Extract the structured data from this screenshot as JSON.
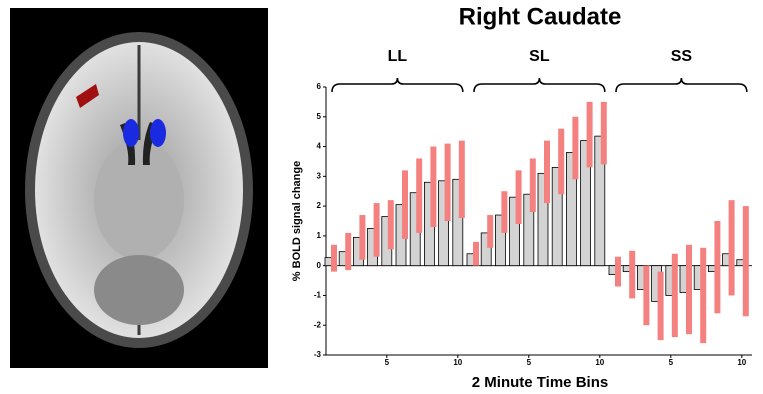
{
  "chart_data": {
    "type": "bar",
    "title": "Right Caudate",
    "xlabel": "2 Minute Time Bins",
    "ylabel": "% BOLD signal change",
    "ylim": [
      -3,
      6
    ],
    "yticks": [
      -3,
      -2,
      -1,
      0,
      1,
      2,
      3,
      4,
      5,
      6
    ],
    "bar_color": "#d3d3d3",
    "error_color": "#f48080",
    "groups": [
      {
        "name": "LL",
        "xticks": [
          5,
          10
        ],
        "values": [
          0.27,
          0.47,
          0.95,
          1.25,
          1.65,
          2.05,
          2.45,
          2.8,
          2.85,
          2.9
        ],
        "low": [
          -0.2,
          -0.15,
          0.2,
          0.3,
          0.55,
          0.9,
          1.1,
          1.3,
          1.5,
          1.6
        ],
        "high": [
          0.7,
          1.1,
          1.7,
          2.1,
          2.2,
          3.2,
          3.6,
          4.0,
          4.1,
          4.2
        ]
      },
      {
        "name": "SL",
        "xticks": [
          5,
          10
        ],
        "values": [
          0.4,
          1.1,
          1.7,
          2.3,
          2.4,
          3.1,
          3.3,
          3.8,
          4.2,
          4.35
        ],
        "low": [
          0.0,
          0.6,
          1.1,
          1.4,
          1.8,
          2.1,
          2.4,
          2.9,
          3.3,
          3.4
        ],
        "high": [
          0.8,
          1.7,
          2.5,
          3.2,
          3.6,
          4.2,
          4.6,
          5.0,
          5.5,
          5.5
        ]
      },
      {
        "name": "SS",
        "xticks": [
          5,
          10
        ],
        "values": [
          -0.3,
          -0.2,
          -0.8,
          -1.2,
          -1.0,
          -0.9,
          -0.8,
          -0.2,
          0.4,
          0.2
        ],
        "low": [
          -0.7,
          -1.1,
          -2.0,
          -2.5,
          -2.4,
          -2.3,
          -2.6,
          -1.6,
          -1.0,
          -1.7
        ],
        "high": [
          0.3,
          0.5,
          0.0,
          -0.2,
          0.4,
          0.7,
          0.6,
          1.5,
          2.2,
          2.0
        ]
      }
    ]
  }
}
